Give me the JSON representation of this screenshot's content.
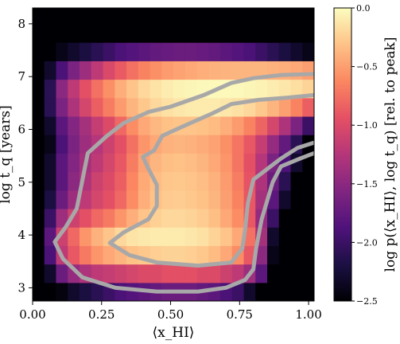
{
  "chart_data": {
    "type": "heatmap",
    "xlabel": "⟨x_HI⟩",
    "ylabel": "log t_q [years]",
    "xlim": [
      0.0,
      1.02
    ],
    "ylim": [
      2.75,
      8.3
    ],
    "x_ticks": [
      "0.00",
      "0.25",
      "0.50",
      "0.75",
      "1.00"
    ],
    "x_tick_values": [
      0.0,
      0.25,
      0.5,
      0.75,
      1.0
    ],
    "y_ticks": [
      "3",
      "4",
      "5",
      "6",
      "7",
      "8"
    ],
    "y_tick_values": [
      3,
      4,
      5,
      6,
      7,
      8
    ],
    "colorbar": {
      "label": "log p(⟨x_HI⟩, log t_q) [rel. to peak]",
      "range": [
        -2.5,
        0.0
      ],
      "ticks": [
        "0.0",
        "−0.5",
        "−1.0",
        "−1.5",
        "−2.0",
        "−2.5"
      ],
      "tick_values": [
        0.0,
        -0.5,
        -1.0,
        -1.5,
        -2.0,
        -2.5
      ],
      "colormap": "magma"
    },
    "grid": {
      "x_edges_start": 0.0,
      "x_bin_width": 0.0425,
      "n_cols": 24,
      "y_edges_start": 2.75,
      "y_bin_width": 0.35,
      "n_rows": 16,
      "row_order": "bottom-to-top",
      "values": [
        [
          -2.5,
          -2.5,
          -2.45,
          -2.3,
          -2.2,
          -2.1,
          -2.0,
          -1.9,
          -1.85,
          -1.8,
          -1.75,
          -1.7,
          -1.7,
          -1.7,
          -1.75,
          -1.8,
          -1.9,
          -2.0,
          -2.3,
          -2.5,
          -2.5,
          -2.5,
          -2.5,
          -2.5
        ],
        [
          -2.5,
          -2.3,
          -1.7,
          -1.45,
          -1.3,
          -1.2,
          -1.15,
          -1.1,
          -1.05,
          -1.0,
          -1.0,
          -0.95,
          -0.95,
          -0.95,
          -1.0,
          -1.0,
          -1.1,
          -1.2,
          -1.4,
          -1.8,
          -2.5,
          -2.5,
          -2.5,
          -2.5
        ],
        [
          -2.5,
          -1.9,
          -1.2,
          -0.9,
          -0.7,
          -0.55,
          -0.45,
          -0.38,
          -0.32,
          -0.28,
          -0.25,
          -0.23,
          -0.23,
          -0.25,
          -0.28,
          -0.35,
          -0.45,
          -0.6,
          -0.9,
          -1.5,
          -2.4,
          -2.5,
          -2.5,
          -2.5
        ],
        [
          -2.5,
          -1.8,
          -1.1,
          -0.8,
          -0.55,
          -0.4,
          -0.3,
          -0.2,
          -0.14,
          -0.11,
          -0.1,
          -0.1,
          -0.1,
          -0.12,
          -0.15,
          -0.22,
          -0.3,
          -0.45,
          -0.75,
          -1.35,
          -2.3,
          -2.5,
          -2.5,
          -2.5
        ],
        [
          -2.5,
          -2.0,
          -1.4,
          -1.1,
          -0.95,
          -0.8,
          -0.7,
          -0.55,
          -0.42,
          -0.3,
          -0.24,
          -0.2,
          -0.2,
          -0.22,
          -0.26,
          -0.33,
          -0.45,
          -0.6,
          -0.9,
          -1.45,
          -2.0,
          -2.5,
          -2.5,
          -2.5
        ],
        [
          -2.5,
          -2.2,
          -1.7,
          -1.4,
          -1.2,
          -1.05,
          -0.95,
          -0.8,
          -0.6,
          -0.42,
          -0.32,
          -0.27,
          -0.26,
          -0.28,
          -0.32,
          -0.38,
          -0.5,
          -0.65,
          -0.9,
          -1.35,
          -1.8,
          -2.3,
          -2.5,
          -2.5
        ],
        [
          -2.5,
          -2.3,
          -1.8,
          -1.5,
          -1.3,
          -1.1,
          -1.0,
          -0.85,
          -0.63,
          -0.44,
          -0.34,
          -0.29,
          -0.28,
          -0.3,
          -0.34,
          -0.4,
          -0.52,
          -0.68,
          -0.92,
          -1.3,
          -1.7,
          -2.1,
          -2.5,
          -2.5
        ],
        [
          -2.5,
          -2.3,
          -1.8,
          -1.55,
          -1.35,
          -1.2,
          -1.05,
          -0.9,
          -0.68,
          -0.48,
          -0.38,
          -0.33,
          -0.32,
          -0.34,
          -0.38,
          -0.45,
          -0.55,
          -0.72,
          -0.95,
          -1.25,
          -1.6,
          -1.9,
          -2.3,
          -2.5
        ],
        [
          -2.5,
          -2.4,
          -1.9,
          -1.6,
          -1.4,
          -1.25,
          -1.1,
          -0.95,
          -0.75,
          -0.55,
          -0.45,
          -0.4,
          -0.38,
          -0.4,
          -0.43,
          -0.48,
          -0.58,
          -0.72,
          -0.9,
          -1.15,
          -1.45,
          -1.75,
          -2.1,
          -2.5
        ],
        [
          -2.5,
          -2.3,
          -1.8,
          -1.55,
          -1.35,
          -1.15,
          -1.0,
          -0.8,
          -0.6,
          -0.45,
          -0.37,
          -0.32,
          -0.3,
          -0.3,
          -0.32,
          -0.35,
          -0.42,
          -0.52,
          -0.65,
          -0.82,
          -1.05,
          -1.3,
          -1.6,
          -2.0
        ],
        [
          -2.5,
          -2.1,
          -1.6,
          -1.3,
          -1.05,
          -0.85,
          -0.68,
          -0.52,
          -0.38,
          -0.28,
          -0.2,
          -0.15,
          -0.12,
          -0.1,
          -0.1,
          -0.1,
          -0.12,
          -0.15,
          -0.2,
          -0.28,
          -0.38,
          -0.5,
          -0.65,
          -0.85
        ],
        [
          -2.5,
          -2.1,
          -1.5,
          -1.2,
          -0.95,
          -0.75,
          -0.58,
          -0.42,
          -0.3,
          -0.2,
          -0.14,
          -0.09,
          -0.06,
          -0.04,
          -0.03,
          -0.02,
          -0.02,
          -0.03,
          -0.04,
          -0.06,
          -0.09,
          -0.12,
          -0.16,
          -0.22
        ],
        [
          -2.5,
          -2.3,
          -1.9,
          -1.6,
          -1.4,
          -1.2,
          -1.02,
          -0.88,
          -0.75,
          -0.65,
          -0.58,
          -0.52,
          -0.48,
          -0.45,
          -0.42,
          -0.4,
          -0.39,
          -0.38,
          -0.38,
          -0.38,
          -0.4,
          -0.42,
          -0.45,
          -0.5
        ],
        [
          -2.5,
          -2.5,
          -2.4,
          -2.3,
          -2.2,
          -2.1,
          -2.0,
          -1.9,
          -1.85,
          -1.8,
          -1.75,
          -1.72,
          -1.7,
          -1.7,
          -1.72,
          -1.75,
          -1.8,
          -1.85,
          -1.9,
          -2.0,
          -2.1,
          -2.2,
          -2.3,
          -2.4
        ],
        [
          -2.5,
          -2.5,
          -2.5,
          -2.5,
          -2.5,
          -2.5,
          -2.5,
          -2.5,
          -2.5,
          -2.5,
          -2.5,
          -2.5,
          -2.5,
          -2.5,
          -2.5,
          -2.5,
          -2.5,
          -2.5,
          -2.5,
          -2.5,
          -2.5,
          -2.5,
          -2.5,
          -2.5
        ],
        [
          -2.5,
          -2.5,
          -2.5,
          -2.5,
          -2.5,
          -2.5,
          -2.5,
          -2.5,
          -2.5,
          -2.5,
          -2.5,
          -2.5,
          -2.5,
          -2.5,
          -2.5,
          -2.5,
          -2.5,
          -2.5,
          -2.5,
          -2.5,
          -2.5,
          -2.5,
          -2.5,
          -2.5
        ]
      ]
    },
    "contours": [
      {
        "level": "outer",
        "color": "#a8a8a8",
        "points": [
          [
            1.02,
            7.05
          ],
          [
            0.9,
            7.03
          ],
          [
            0.8,
            6.97
          ],
          [
            0.72,
            6.88
          ],
          [
            0.62,
            6.65
          ],
          [
            0.5,
            6.43
          ],
          [
            0.42,
            6.33
          ],
          [
            0.33,
            6.12
          ],
          [
            0.27,
            5.88
          ],
          [
            0.2,
            5.55
          ],
          [
            0.16,
            4.5
          ],
          [
            0.12,
            4.15
          ],
          [
            0.08,
            3.87
          ],
          [
            0.11,
            3.55
          ],
          [
            0.18,
            3.2
          ],
          [
            0.3,
            3.0
          ],
          [
            0.45,
            2.93
          ],
          [
            0.6,
            2.93
          ],
          [
            0.7,
            3.0
          ],
          [
            0.77,
            3.15
          ],
          [
            0.8,
            3.35
          ],
          [
            0.81,
            3.75
          ],
          [
            0.83,
            4.3
          ],
          [
            0.85,
            4.65
          ],
          [
            0.87,
            5.0
          ],
          [
            0.9,
            5.3
          ],
          [
            0.97,
            5.45
          ],
          [
            1.02,
            5.55
          ]
        ]
      },
      {
        "level": "inner",
        "color": "#a8a8a8",
        "points": [
          [
            1.02,
            5.75
          ],
          [
            0.96,
            5.65
          ],
          [
            0.9,
            5.45
          ],
          [
            0.8,
            5.05
          ],
          [
            0.78,
            4.6
          ],
          [
            0.77,
            4.1
          ],
          [
            0.76,
            3.75
          ],
          [
            0.72,
            3.48
          ],
          [
            0.6,
            3.42
          ],
          [
            0.45,
            3.48
          ],
          [
            0.35,
            3.62
          ],
          [
            0.28,
            3.85
          ],
          [
            0.33,
            4.05
          ],
          [
            0.42,
            4.3
          ],
          [
            0.45,
            4.55
          ],
          [
            0.45,
            4.95
          ],
          [
            0.42,
            5.25
          ],
          [
            0.4,
            5.48
          ],
          [
            0.44,
            5.6
          ],
          [
            0.47,
            5.88
          ],
          [
            0.55,
            6.07
          ],
          [
            0.65,
            6.3
          ],
          [
            0.72,
            6.48
          ],
          [
            0.82,
            6.56
          ],
          [
            0.92,
            6.6
          ],
          [
            1.02,
            6.65
          ]
        ]
      }
    ]
  }
}
